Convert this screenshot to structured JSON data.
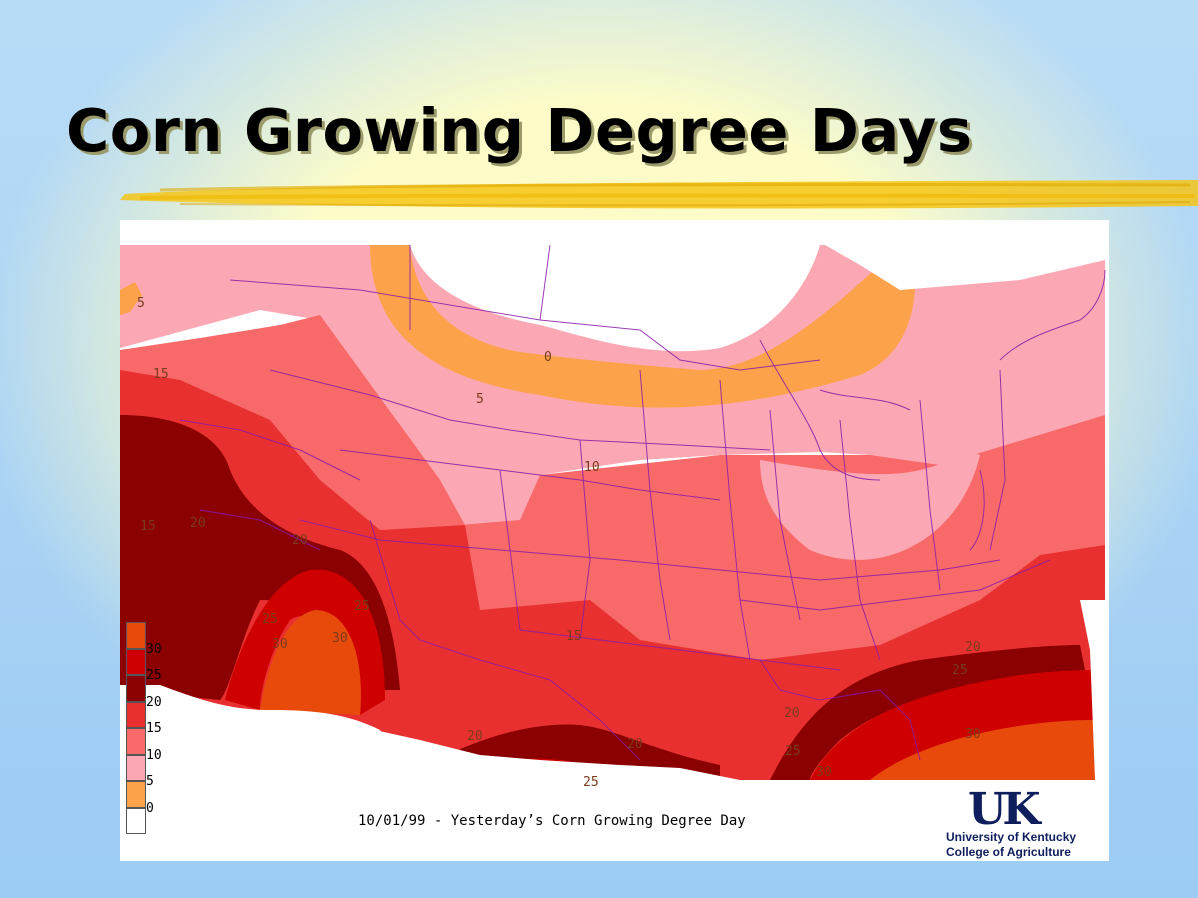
{
  "slide": {
    "title": "Corn Growing Degree Days",
    "accent_color": "#f5c518"
  },
  "map": {
    "caption": "10/01/99 - Yesterday’s Corn Growing Degree Day",
    "legend": [
      {
        "label": "30",
        "color": "#e84a0c"
      },
      {
        "label": "25",
        "color": "#cf0000"
      },
      {
        "label": "20",
        "color": "#8b0000"
      },
      {
        "label": "15",
        "color": "#e83030"
      },
      {
        "label": "10",
        "color": "#f86a6a"
      },
      {
        "label": "5",
        "color": "#fca8b4"
      },
      {
        "label": "0",
        "color": "#fca24a"
      },
      {
        "label": "",
        "color": "#ffffff"
      }
    ],
    "contour_labels": [
      {
        "text": "5"
      },
      {
        "text": "15"
      },
      {
        "text": "0"
      },
      {
        "text": "5"
      },
      {
        "text": "10"
      },
      {
        "text": "15"
      },
      {
        "text": "20"
      },
      {
        "text": "20"
      },
      {
        "text": "25"
      },
      {
        "text": "25"
      },
      {
        "text": "30"
      },
      {
        "text": "30"
      },
      {
        "text": "15"
      },
      {
        "text": "20"
      },
      {
        "text": "25"
      },
      {
        "text": "20"
      },
      {
        "text": "20"
      },
      {
        "text": "25"
      },
      {
        "text": "20"
      },
      {
        "text": "25"
      },
      {
        "text": "30"
      },
      {
        "text": "30"
      }
    ]
  },
  "logo": {
    "mark": "UK",
    "line1": "University of Kentucky",
    "line2": "College of Agriculture"
  }
}
